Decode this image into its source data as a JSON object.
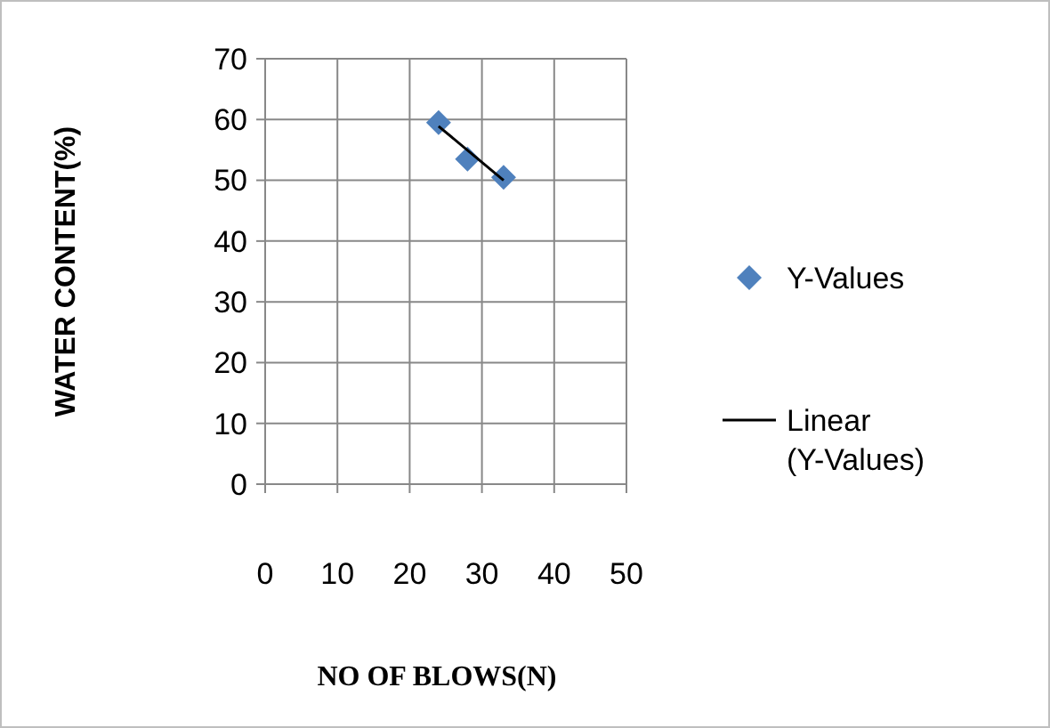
{
  "chart_data": {
    "type": "scatter",
    "xlabel": "NO OF BLOWS(N)",
    "ylabel": "WATER CONTENT(%)",
    "xlim": [
      0,
      50
    ],
    "xticks": [
      0,
      10,
      20,
      30,
      40,
      50
    ],
    "ylim": [
      0,
      70
    ],
    "yticks": [
      0,
      10,
      20,
      30,
      40,
      50,
      60,
      70
    ],
    "grid": true,
    "legend": "right",
    "series": [
      {
        "name": "Y-Values",
        "marker": "diamond",
        "color": "#4f81bd",
        "x": [
          24,
          28,
          33
        ],
        "values": [
          59.5,
          53.5,
          50.5
        ]
      },
      {
        "name": "Linear (Y-Values)",
        "type": "line",
        "color": "#000000",
        "x": [
          24,
          33
        ],
        "values": [
          58.9,
          50
        ],
        "line_style": "solid"
      }
    ]
  }
}
